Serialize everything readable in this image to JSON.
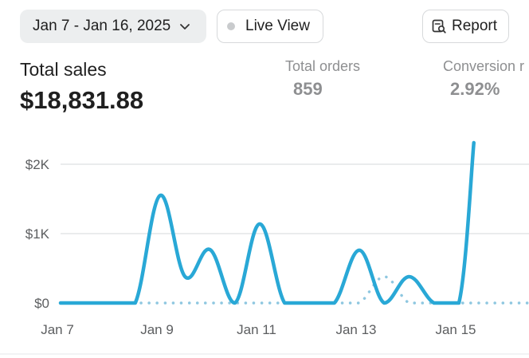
{
  "toolbar": {
    "date_range": "Jan 7 - Jan 16, 2025",
    "live_view": "Live View",
    "report": "Report"
  },
  "metrics": {
    "total_sales_label": "Total sales",
    "total_sales_value": "$18,831.88",
    "total_orders_label": "Total orders",
    "total_orders_value": "859",
    "conversion_label": "Conversion r",
    "conversion_value": "2.92%"
  },
  "colors": {
    "primary_series": "#29a8d6",
    "comparison_series": "#8ec7e0",
    "grid": "#e3e5e7"
  },
  "chart_data": {
    "type": "line",
    "x": [
      "Jan 7",
      "Jan 7.5",
      "Jan 8",
      "Jan 8.5",
      "Jan 9",
      "Jan 9.5",
      "Jan 10",
      "Jan 10.5",
      "Jan 11",
      "Jan 11.5",
      "Jan 12",
      "Jan 12.5",
      "Jan 13",
      "Jan 13.5",
      "Jan 14",
      "Jan 14.5",
      "Jan 15",
      "Jan 15.3"
    ],
    "x_tick_labels": [
      "Jan 7",
      "Jan 9",
      "Jan 11",
      "Jan 13",
      "Jan 15"
    ],
    "y_tick_labels": [
      "$0",
      "$1K",
      "$2K"
    ],
    "ylim": [
      0,
      2400
    ],
    "grid": true,
    "series": [
      {
        "values": [
          0,
          0,
          0,
          0,
          1550,
          380,
          770,
          0,
          1140,
          0,
          0,
          0,
          760,
          0,
          380,
          0,
          0,
          2310
        ]
      },
      {
        "values": [
          0,
          0,
          0,
          0,
          0,
          0,
          0,
          0,
          0,
          0,
          0,
          0,
          0,
          380,
          0,
          0,
          0,
          0
        ],
        "style": "dotted"
      }
    ]
  }
}
